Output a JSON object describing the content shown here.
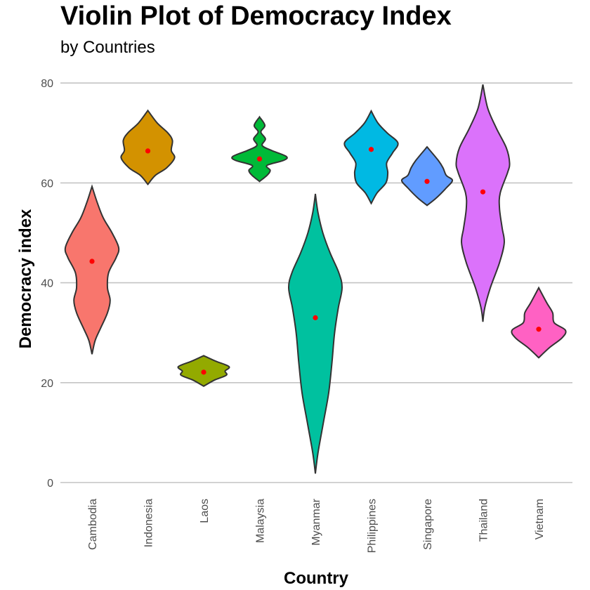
{
  "chart_data": {
    "type": "violin",
    "title": "Violin Plot of Democracy Index",
    "subtitle": "by Countries",
    "xlabel": "Country",
    "ylabel": "Democracy index",
    "ylim": [
      0,
      82
    ],
    "yticks": [
      0,
      20,
      40,
      60,
      80
    ],
    "grid": "horizontal",
    "legend": "none",
    "mean_marker_color": "#ff0000",
    "categories": [
      "Cambodia",
      "Indonesia",
      "Laos",
      "Malaysia",
      "Myanmar",
      "Philippines",
      "Singapore",
      "Thailand",
      "Vietnam"
    ],
    "series": [
      {
        "category": "Cambodia",
        "color": "#f8766d",
        "min": 25.7,
        "max": 59.3,
        "mean": 44.3,
        "profile": [
          [
            25.7,
            0
          ],
          [
            28.5,
            0.12
          ],
          [
            31,
            0.33
          ],
          [
            34,
            0.58
          ],
          [
            36.5,
            0.68
          ],
          [
            39,
            0.58
          ],
          [
            42,
            0.62
          ],
          [
            45,
            0.9
          ],
          [
            47,
            1.0
          ],
          [
            50,
            0.75
          ],
          [
            53,
            0.42
          ],
          [
            56,
            0.2
          ],
          [
            59.3,
            0
          ]
        ]
      },
      {
        "category": "Indonesia",
        "color": "#d39200",
        "min": 59.7,
        "max": 74.5,
        "mean": 66.4,
        "profile": [
          [
            59.7,
            0
          ],
          [
            61.5,
            0.28
          ],
          [
            63,
            0.7
          ],
          [
            65,
            1.0
          ],
          [
            66.5,
            0.88
          ],
          [
            68.5,
            0.92
          ],
          [
            70,
            0.75
          ],
          [
            72,
            0.35
          ],
          [
            74.5,
            0
          ]
        ]
      },
      {
        "category": "Laos",
        "color": "#93aa00",
        "min": 19.3,
        "max": 25.4,
        "mean": 22.1,
        "profile": [
          [
            19.3,
            0
          ],
          [
            20.5,
            0.4
          ],
          [
            21.5,
            0.85
          ],
          [
            22.3,
            0.8
          ],
          [
            23.2,
            0.95
          ],
          [
            24.3,
            0.45
          ],
          [
            25.4,
            0
          ]
        ]
      },
      {
        "category": "Malaysia",
        "color": "#00ba38",
        "min": 60.3,
        "max": 73.2,
        "mean": 64.8,
        "profile": [
          [
            60.3,
            0
          ],
          [
            61.5,
            0.28
          ],
          [
            62.5,
            0.4
          ],
          [
            63.5,
            0.28
          ],
          [
            64.5,
            0.9
          ],
          [
            65.3,
            1.0
          ],
          [
            66.5,
            0.45
          ],
          [
            67.5,
            0.1
          ],
          [
            68.8,
            0.22
          ],
          [
            70.2,
            0.05
          ],
          [
            71.5,
            0.2
          ],
          [
            73.2,
            0
          ]
        ]
      },
      {
        "category": "Myanmar",
        "color": "#00c19f",
        "min": 1.8,
        "max": 57.8,
        "mean": 33.0,
        "profile": [
          [
            1.8,
            0
          ],
          [
            6,
            0.1
          ],
          [
            12,
            0.3
          ],
          [
            18,
            0.5
          ],
          [
            24,
            0.62
          ],
          [
            30,
            0.72
          ],
          [
            35,
            0.86
          ],
          [
            39,
            1.0
          ],
          [
            42,
            0.88
          ],
          [
            46,
            0.55
          ],
          [
            50,
            0.28
          ],
          [
            54,
            0.1
          ],
          [
            57.8,
            0
          ]
        ]
      },
      {
        "category": "Philippines",
        "color": "#00b9e3",
        "min": 55.9,
        "max": 74.4,
        "mean": 66.7,
        "profile": [
          [
            55.9,
            0
          ],
          [
            58,
            0.22
          ],
          [
            60,
            0.55
          ],
          [
            62,
            0.62
          ],
          [
            64,
            0.58
          ],
          [
            66,
            0.8
          ],
          [
            68,
            1.0
          ],
          [
            70,
            0.6
          ],
          [
            72,
            0.25
          ],
          [
            74.4,
            0
          ]
        ]
      },
      {
        "category": "Singapore",
        "color": "#619cff",
        "min": 55.5,
        "max": 67.2,
        "mean": 60.3,
        "profile": [
          [
            55.5,
            0
          ],
          [
            57,
            0.35
          ],
          [
            59,
            0.72
          ],
          [
            60.5,
            0.95
          ],
          [
            61.5,
            0.72
          ],
          [
            63,
            0.6
          ],
          [
            64.5,
            0.42
          ],
          [
            67.2,
            0
          ]
        ]
      },
      {
        "category": "Thailand",
        "color": "#db72fb",
        "min": 32.2,
        "max": 79.7,
        "mean": 58.2,
        "profile": [
          [
            32.2,
            0
          ],
          [
            35,
            0.07
          ],
          [
            39,
            0.28
          ],
          [
            44,
            0.62
          ],
          [
            48,
            0.8
          ],
          [
            51,
            0.72
          ],
          [
            55,
            0.62
          ],
          [
            58,
            0.65
          ],
          [
            62,
            0.92
          ],
          [
            64,
            1.0
          ],
          [
            67,
            0.88
          ],
          [
            71,
            0.5
          ],
          [
            75,
            0.18
          ],
          [
            79.7,
            0
          ]
        ]
      },
      {
        "category": "Vietnam",
        "color": "#ff61c3",
        "min": 25.0,
        "max": 39.0,
        "mean": 30.7,
        "profile": [
          [
            25,
            0
          ],
          [
            27,
            0.4
          ],
          [
            29,
            0.88
          ],
          [
            30.5,
            1.0
          ],
          [
            32,
            0.58
          ],
          [
            34,
            0.52
          ],
          [
            36,
            0.3
          ],
          [
            39,
            0
          ]
        ]
      }
    ]
  }
}
